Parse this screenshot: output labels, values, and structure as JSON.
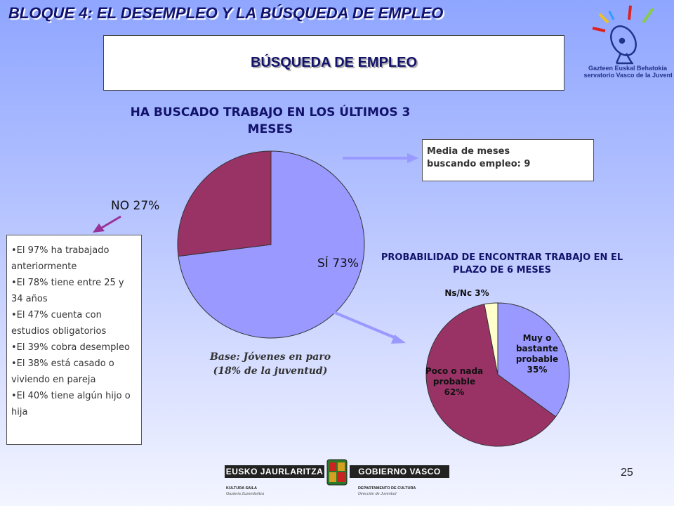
{
  "slide": {
    "title": "BLOQUE 4: EL DESEMPLEO Y LA BÚSQUEDA DE EMPLEO",
    "subtitle": "BÚSQUEDA DE EMPLEO",
    "page_number": "25"
  },
  "logo": {
    "line1": "Gazteen Euskal Behatokia",
    "line2": "Observatorio Vasco de la Juventud"
  },
  "media_box": {
    "line1": "Media de meses",
    "line2": "buscando empleo: 9"
  },
  "base_note": {
    "line1": "Base: Jóvenes en paro",
    "line2": "(18% de la juventud)"
  },
  "profile": [
    "•El 97% ha trabajado anteriormente",
    "•El 78% tiene entre 25 y 34 años",
    "•El 47% cuenta con estudios obligatorios",
    "•El 39% cobra desempleo",
    "•El 38% está casado o viviendo en pareja",
    "•El 40% tiene algún hijo o hija"
  ],
  "footer": {
    "left_band": "EUSKO JAURLARITZA",
    "right_band": "GOBIERNO VASCO",
    "left_sub1": "KULTURA SAILA",
    "left_sub2": "Gazteria Zuzendaritza",
    "right_sub1": "DEPARTAMENTO DE CULTURA",
    "right_sub2": "Dirección de Juventud"
  },
  "colors": {
    "navy": "#12126a",
    "pie_blue": "#9999ff",
    "pie_maroon": "#993366",
    "pie_cream": "#ffffcc",
    "arrow": "#9999ff",
    "arrow_purple": "#993399"
  },
  "chart_data": [
    {
      "type": "pie",
      "title_lines": [
        "HA BUSCADO TRABAJO EN LOS ÚLTIMOS 3",
        "MESES"
      ],
      "slices": [
        {
          "label": "SÍ 73%",
          "value": 73,
          "color": "#9999ff"
        },
        {
          "label": "NO 27%",
          "value": 27,
          "color": "#993366"
        }
      ]
    },
    {
      "type": "pie",
      "title_lines": [
        "PROBABILIDAD DE ENCONTRAR TRABAJO EN EL",
        "PLAZO DE 6 MESES"
      ],
      "slices": [
        {
          "label_lines": [
            "Muy o",
            "bastante",
            "probable",
            "35%"
          ],
          "value": 35,
          "color": "#9999ff"
        },
        {
          "label_lines": [
            "Poco o nada",
            "probable",
            "62%"
          ],
          "value": 62,
          "color": "#993366"
        },
        {
          "label_lines": [
            "Ns/Nc 3%"
          ],
          "value": 3,
          "color": "#ffffcc"
        }
      ]
    }
  ]
}
